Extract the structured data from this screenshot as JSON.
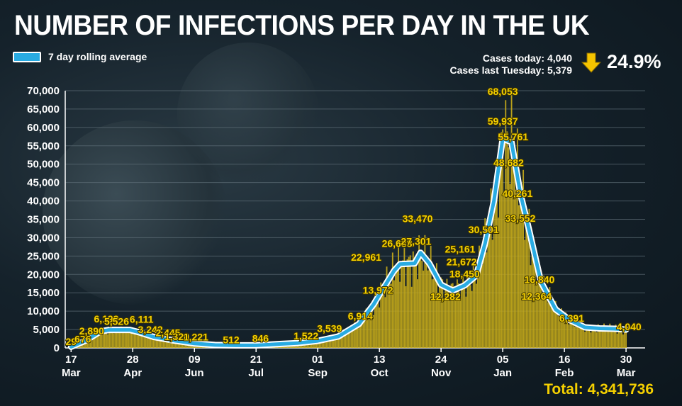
{
  "title": "NUMBER OF INFECTIONS PER DAY IN THE UK",
  "legend": {
    "label": "7 day rolling average"
  },
  "stats": {
    "today": "Cases today: 4,040",
    "last_tuesday": "Cases last Tuesday: 5,379",
    "change": "24.9%"
  },
  "total": "Total: 4,341,736",
  "colors": {
    "bars": "#c9ad1a",
    "line": "#29abe2",
    "label": "#f5d000",
    "arrow": "#f5c400"
  },
  "chart_data": {
    "type": "bar",
    "title": "NUMBER OF INFECTIONS PER DAY IN THE UK",
    "ylim": [
      0,
      70000
    ],
    "yticks": [
      0,
      5000,
      10000,
      15000,
      20000,
      25000,
      30000,
      35000,
      40000,
      45000,
      50000,
      55000,
      60000,
      65000,
      70000
    ],
    "ytick_labels": [
      "0",
      "5,000",
      "10,000",
      "15,000",
      "20,000",
      "25,000",
      "30,000",
      "35,000",
      "40,000",
      "45,000",
      "50,000",
      "55,000",
      "60,000",
      "65,000",
      "70,000"
    ],
    "xlim": [
      -4,
      391
    ],
    "xticks": [
      {
        "day": 0,
        "day_label": "17",
        "month_label": "Mar"
      },
      {
        "day": 42,
        "day_label": "28",
        "month_label": "Apr"
      },
      {
        "day": 84,
        "day_label": "09",
        "month_label": "Jun"
      },
      {
        "day": 126,
        "day_label": "21",
        "month_label": "Jul"
      },
      {
        "day": 168,
        "day_label": "01",
        "month_label": "Sep"
      },
      {
        "day": 210,
        "day_label": "13",
        "month_label": "Oct"
      },
      {
        "day": 252,
        "day_label": "24",
        "month_label": "Nov"
      },
      {
        "day": 294,
        "day_label": "05",
        "month_label": "Jan"
      },
      {
        "day": 336,
        "day_label": "16",
        "month_label": "Feb"
      },
      {
        "day": 378,
        "day_label": "30",
        "month_label": "Mar"
      }
    ],
    "rolling_average": {
      "name": "7 day rolling average",
      "days": [
        0,
        10,
        20,
        26,
        40,
        46,
        56,
        70,
        84,
        98,
        112,
        126,
        140,
        154,
        168,
        182,
        196,
        206,
        210,
        220,
        224,
        234,
        238,
        244,
        252,
        260,
        268,
        276,
        282,
        288,
        294,
        300,
        306,
        312,
        320,
        330,
        340,
        350,
        360,
        370,
        378
      ],
      "values": [
        300,
        2000,
        4500,
        4900,
        4900,
        4300,
        3000,
        2000,
        1200,
        800,
        700,
        700,
        1000,
        1300,
        1900,
        3100,
        6500,
        11800,
        14500,
        21000,
        22800,
        23000,
        25900,
        23000,
        17200,
        15600,
        17000,
        19700,
        28500,
        40000,
        57000,
        56000,
        42000,
        32000,
        18000,
        10500,
        7500,
        5600,
        5300,
        5200,
        5000
      ]
    },
    "annotations": [
      {
        "day": 0,
        "value": 29,
        "label": "29"
      },
      {
        "day": 8,
        "value": 676,
        "label": "676"
      },
      {
        "day": 14,
        "value": 2890,
        "label": "2,890"
      },
      {
        "day": 24,
        "value": 6199,
        "label": "6,199"
      },
      {
        "day": 31,
        "value": 5526,
        "label": "5,526"
      },
      {
        "day": 48,
        "value": 6111,
        "label": "6,111"
      },
      {
        "day": 54,
        "value": 3242,
        "label": "3,242"
      },
      {
        "day": 66,
        "value": 2445,
        "label": "2,445"
      },
      {
        "day": 72,
        "value": 1320,
        "label": "1,320"
      },
      {
        "day": 85,
        "value": 1221,
        "label": "1,221"
      },
      {
        "day": 109,
        "value": 512,
        "label": "512"
      },
      {
        "day": 129,
        "value": 846,
        "label": "846"
      },
      {
        "day": 160,
        "value": 1522,
        "label": "1,522"
      },
      {
        "day": 176,
        "value": 3539,
        "label": "3,539"
      },
      {
        "day": 197,
        "value": 6914,
        "label": "6,914"
      },
      {
        "day": 209,
        "value": 13972,
        "label": "13,972"
      },
      {
        "day": 201,
        "value": 22961,
        "label": "22,961"
      },
      {
        "day": 222,
        "value": 26688,
        "label": "26,688"
      },
      {
        "day": 235,
        "value": 27301,
        "label": "27,301"
      },
      {
        "day": 236,
        "value": 33470,
        "label": "33,470"
      },
      {
        "day": 255,
        "value": 12282,
        "label": "12,282"
      },
      {
        "day": 268,
        "value": 18450,
        "label": "18,450"
      },
      {
        "day": 266,
        "value": 21672,
        "label": "21,672"
      },
      {
        "day": 265,
        "value": 25161,
        "label": "25,161"
      },
      {
        "day": 281,
        "value": 30501,
        "label": "30,501"
      },
      {
        "day": 306,
        "value": 33552,
        "label": "33,552"
      },
      {
        "day": 304,
        "value": 40261,
        "label": "40,261"
      },
      {
        "day": 298,
        "value": 48682,
        "label": "48,682"
      },
      {
        "day": 301,
        "value": 55761,
        "label": "55,761"
      },
      {
        "day": 294,
        "value": 59937,
        "label": "59,937"
      },
      {
        "day": 294,
        "value": 68053,
        "label": "68,053"
      },
      {
        "day": 319,
        "value": 16840,
        "label": "16,840"
      },
      {
        "day": 317,
        "value": 12364,
        "label": "12,364"
      },
      {
        "day": 341,
        "value": 6391,
        "label": "6,391"
      },
      {
        "day": 380,
        "value": 4040,
        "label": "4,040"
      }
    ]
  }
}
